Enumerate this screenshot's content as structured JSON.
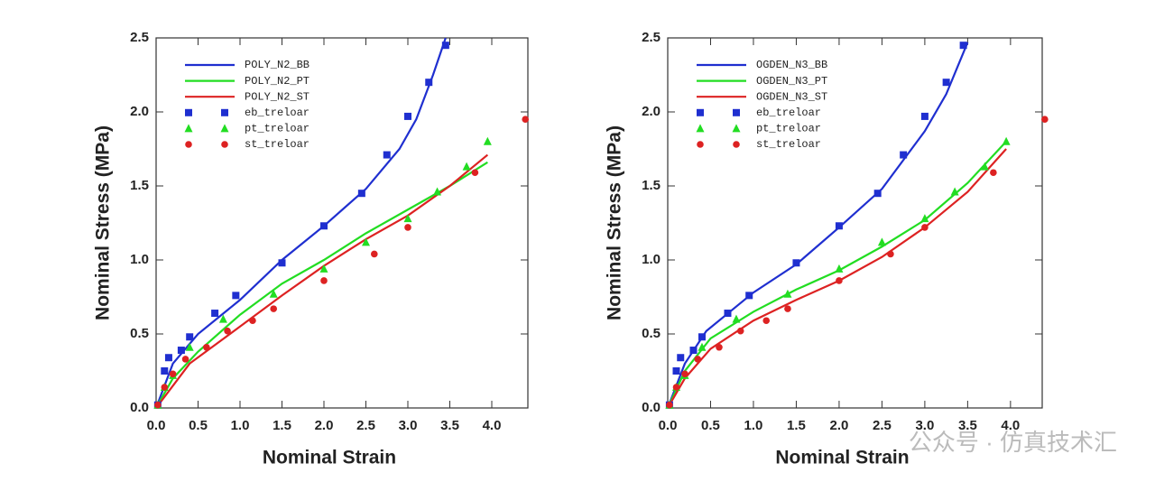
{
  "chart_data": [
    {
      "type": "line",
      "xlabel": "Nominal Strain",
      "ylabel": "Nominal Stress (MPa)",
      "xlim": [
        0,
        4.43
      ],
      "ylim": [
        0,
        2.5
      ],
      "xticks": [
        {
          "value": 0,
          "label": "0.0"
        },
        0.5,
        {
          "value": 1,
          "label": "1.0"
        },
        1.5,
        {
          "value": 2,
          "label": "2.0"
        },
        2.5,
        {
          "value": 3,
          "label": "3.0"
        },
        3.5,
        {
          "value": 4,
          "label": "4.0"
        }
      ],
      "yticks": [
        {
          "value": 0,
          "label": "0.0"
        },
        0.5,
        {
          "value": 1,
          "label": "1.0"
        },
        1.5,
        {
          "value": 2,
          "label": "2.0"
        },
        2.5
      ],
      "series": [
        {
          "name": "POLY_N2_BB",
          "color": "#1f2fd0",
          "marker": "line",
          "x": [
            0,
            0.2,
            0.5,
            1,
            1.5,
            2,
            2.5,
            2.9,
            3.1,
            3.3,
            3.45
          ],
          "values": [
            0,
            0.3,
            0.5,
            0.73,
            1.0,
            1.23,
            1.48,
            1.75,
            1.95,
            2.25,
            2.5
          ]
        },
        {
          "name": "POLY_N2_PT",
          "color": "#22dd22",
          "marker": "line",
          "x": [
            0,
            0.2,
            0.5,
            1,
            1.5,
            2,
            2.5,
            3,
            3.5,
            3.95
          ],
          "values": [
            0,
            0.2,
            0.38,
            0.63,
            0.84,
            1.0,
            1.18,
            1.34,
            1.5,
            1.66
          ]
        },
        {
          "name": "POLY_N2_ST",
          "color": "#dd2222",
          "marker": "line",
          "x": [
            0,
            0.2,
            0.4,
            1,
            1.5,
            2,
            2.5,
            3,
            3.5,
            3.95
          ],
          "values": [
            0,
            0.15,
            0.3,
            0.55,
            0.76,
            0.96,
            1.14,
            1.3,
            1.5,
            1.71
          ]
        },
        {
          "name": "eb_treloar",
          "color": "#1f2fd0",
          "marker": "square",
          "x": [
            0.02,
            0.1,
            0.15,
            0.3,
            0.4,
            0.7,
            0.95,
            1.5,
            2.0,
            2.45,
            2.75,
            3.0,
            3.25,
            3.45
          ],
          "values": [
            0.02,
            0.25,
            0.34,
            0.39,
            0.48,
            0.64,
            0.76,
            0.98,
            1.23,
            1.45,
            1.71,
            1.97,
            2.2,
            2.45
          ]
        },
        {
          "name": "pt_treloar",
          "color": "#22dd22",
          "marker": "triangle",
          "x": [
            0.02,
            0.1,
            0.2,
            0.4,
            0.8,
            1.4,
            2.0,
            2.5,
            3.0,
            3.35,
            3.7,
            3.95
          ],
          "values": [
            0.02,
            0.14,
            0.22,
            0.41,
            0.6,
            0.77,
            0.94,
            1.12,
            1.28,
            1.46,
            1.63,
            1.8
          ]
        },
        {
          "name": "st_treloar",
          "color": "#dd2222",
          "marker": "circle",
          "x": [
            0.02,
            0.1,
            0.2,
            0.35,
            0.6,
            0.85,
            1.15,
            1.4,
            2.0,
            2.6,
            3.0,
            3.8,
            4.4
          ],
          "values": [
            0.02,
            0.14,
            0.23,
            0.33,
            0.41,
            0.52,
            0.59,
            0.67,
            0.86,
            1.04,
            1.22,
            1.59,
            1.95
          ]
        }
      ]
    },
    {
      "type": "line",
      "xlabel": "Nominal Strain",
      "ylabel": "Nominal Stress (MPa)",
      "xlim": [
        0,
        4.37
      ],
      "ylim": [
        0,
        2.5
      ],
      "xticks": [
        {
          "value": 0,
          "label": "0.0"
        },
        0.5,
        {
          "value": 1,
          "label": "1.0"
        },
        1.5,
        {
          "value": 2,
          "label": "2.0"
        },
        2.5,
        {
          "value": 3,
          "label": "3.0"
        },
        3.5,
        {
          "value": 4,
          "label": "4.0"
        }
      ],
      "yticks": [
        {
          "value": 0,
          "label": "0.0"
        },
        0.5,
        {
          "value": 1,
          "label": "1.0"
        },
        1.5,
        {
          "value": 2,
          "label": "2.0"
        },
        2.5
      ],
      "series": [
        {
          "name": "OGDEN_N3_BB",
          "color": "#1f2fd0",
          "marker": "line",
          "x": [
            0,
            0.2,
            0.45,
            1,
            1.5,
            2,
            2.5,
            3,
            3.25,
            3.5
          ],
          "values": [
            0,
            0.3,
            0.52,
            0.78,
            0.97,
            1.22,
            1.48,
            1.87,
            2.12,
            2.47
          ]
        },
        {
          "name": "OGDEN_N3_PT",
          "color": "#22dd22",
          "marker": "line",
          "x": [
            0,
            0.2,
            0.5,
            1,
            1.5,
            2,
            2.5,
            3,
            3.5,
            3.95
          ],
          "values": [
            0,
            0.25,
            0.47,
            0.65,
            0.8,
            0.93,
            1.09,
            1.27,
            1.52,
            1.8
          ]
        },
        {
          "name": "OGDEN_N3_ST",
          "color": "#dd2222",
          "marker": "line",
          "x": [
            0,
            0.2,
            0.5,
            1,
            1.5,
            2,
            2.5,
            3,
            3.5,
            3.95
          ],
          "values": [
            0,
            0.2,
            0.4,
            0.59,
            0.73,
            0.86,
            1.02,
            1.22,
            1.46,
            1.75
          ]
        },
        {
          "name": "eb_treloar",
          "color": "#1f2fd0",
          "marker": "square",
          "x": [
            0.02,
            0.1,
            0.15,
            0.3,
            0.4,
            0.7,
            0.95,
            1.5,
            2.0,
            2.45,
            2.75,
            3.0,
            3.25,
            3.45
          ],
          "values": [
            0.02,
            0.25,
            0.34,
            0.39,
            0.48,
            0.64,
            0.76,
            0.98,
            1.23,
            1.45,
            1.71,
            1.97,
            2.2,
            2.45
          ]
        },
        {
          "name": "pt_treloar",
          "color": "#22dd22",
          "marker": "triangle",
          "x": [
            0.02,
            0.1,
            0.2,
            0.4,
            0.8,
            1.4,
            2.0,
            2.5,
            3.0,
            3.35,
            3.7,
            3.95
          ],
          "values": [
            0.02,
            0.14,
            0.22,
            0.41,
            0.6,
            0.77,
            0.94,
            1.12,
            1.28,
            1.46,
            1.63,
            1.8
          ]
        },
        {
          "name": "st_treloar",
          "color": "#dd2222",
          "marker": "circle",
          "x": [
            0.02,
            0.1,
            0.2,
            0.35,
            0.6,
            0.85,
            1.15,
            1.4,
            2.0,
            2.6,
            3.0,
            3.8,
            4.4
          ],
          "values": [
            0.02,
            0.14,
            0.23,
            0.33,
            0.41,
            0.52,
            0.59,
            0.67,
            0.86,
            1.04,
            1.22,
            1.59,
            1.95
          ]
        }
      ]
    }
  ],
  "watermark": "公众号 · 仿真技术汇"
}
